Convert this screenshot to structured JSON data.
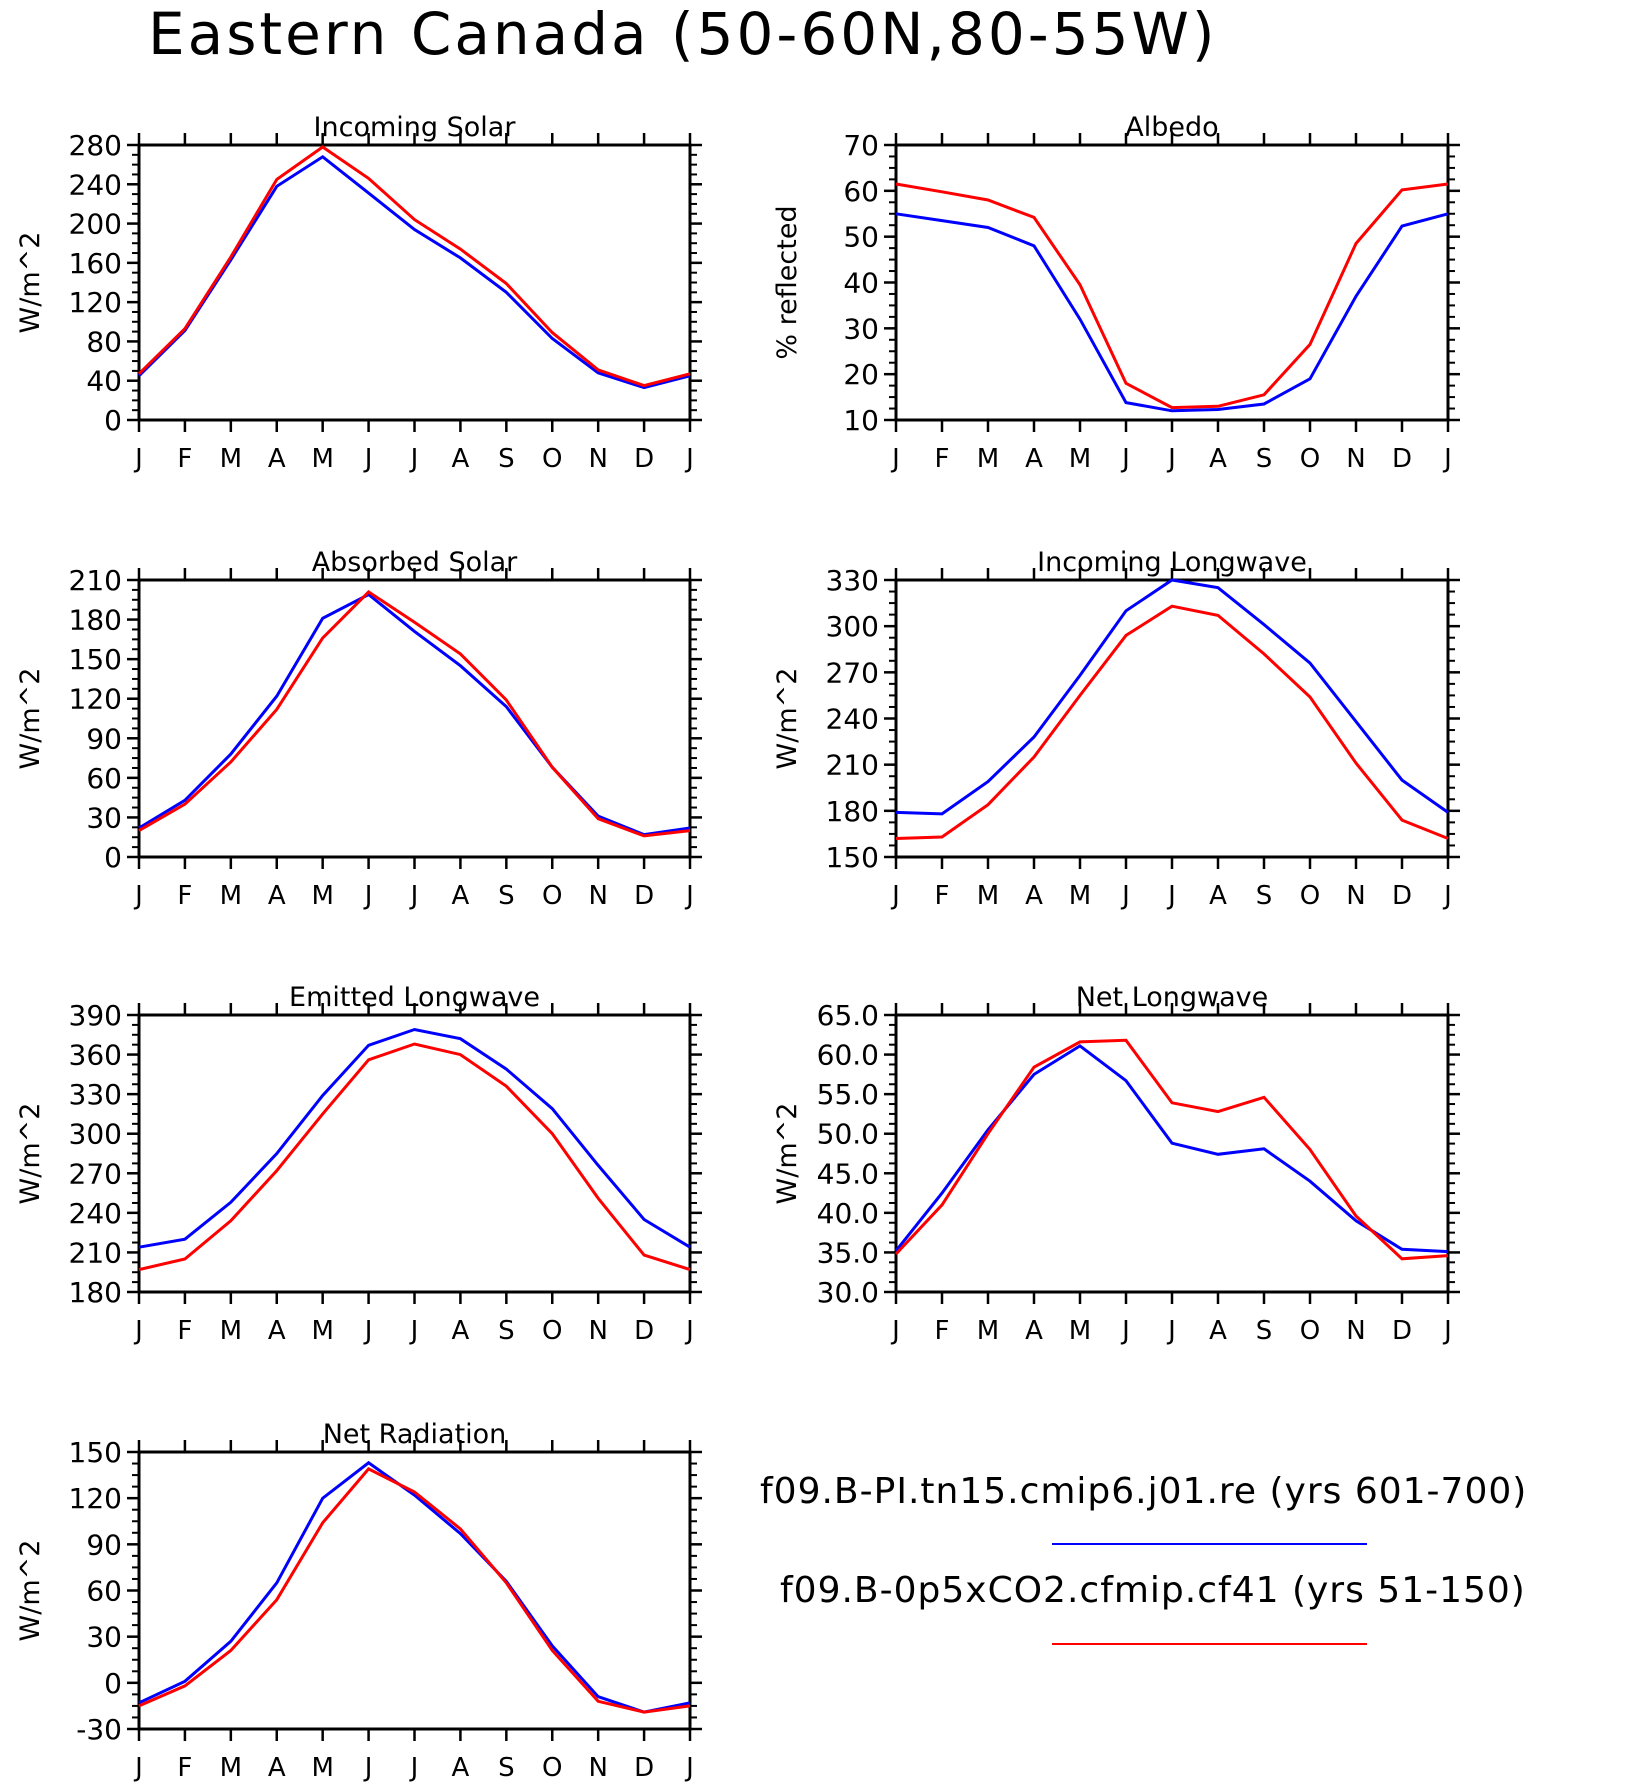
{
  "title": "Eastern Canada (50-60N,80-55W)",
  "month_labels": [
    "J",
    "F",
    "M",
    "A",
    "M",
    "J",
    "J",
    "A",
    "S",
    "O",
    "N",
    "D",
    "J"
  ],
  "legend": [
    {
      "label": "f09.B-PI.tn15.cmip6.j01.re (yrs 601-700)",
      "color": "#0000ff"
    },
    {
      "label": "f09.B-0p5xCO2.cfmip.cf41 (yrs 51-150)",
      "color": "#ff0000"
    }
  ],
  "chart_data": [
    {
      "type": "line",
      "title": "Incoming Solar",
      "ylabel": "W/m^2",
      "ylim": [
        0,
        280
      ],
      "yticks": [
        "0",
        "40",
        "80",
        "120",
        "160",
        "200",
        "240",
        "280"
      ],
      "categories": [
        "J",
        "F",
        "M",
        "A",
        "M",
        "J",
        "J",
        "A",
        "S",
        "O",
        "N",
        "D",
        "J"
      ],
      "series": [
        {
          "color": "#0000ff",
          "values": [
            45,
            91,
            163,
            238,
            268,
            231,
            194,
            165,
            130,
            83,
            48,
            33,
            45
          ]
        },
        {
          "color": "#ff0000",
          "values": [
            47,
            93,
            166,
            245,
            278,
            246,
            204,
            174,
            139,
            89,
            51,
            35,
            47
          ]
        }
      ]
    },
    {
      "type": "line",
      "title": "Albedo",
      "ylabel": "% reflected",
      "ylim": [
        10,
        70
      ],
      "yticks": [
        "10",
        "20",
        "30",
        "40",
        "50",
        "60",
        "70"
      ],
      "categories": [
        "J",
        "F",
        "M",
        "A",
        "M",
        "J",
        "J",
        "A",
        "S",
        "O",
        "N",
        "D",
        "J"
      ],
      "series": [
        {
          "color": "#0000ff",
          "values": [
            55,
            53.5,
            52,
            48,
            32,
            13.8,
            12,
            12.3,
            13.5,
            19,
            37,
            52.3,
            55
          ]
        },
        {
          "color": "#ff0000",
          "values": [
            61.5,
            59.8,
            58,
            54.2,
            39.5,
            18,
            12.7,
            13,
            15.5,
            26.5,
            48.5,
            60.2,
            61.5
          ]
        }
      ]
    },
    {
      "type": "line",
      "title": "Absorbed Solar",
      "ylabel": "W/m^2",
      "ylim": [
        0,
        210
      ],
      "yticks": [
        "0",
        "30",
        "60",
        "90",
        "120",
        "150",
        "180",
        "210"
      ],
      "categories": [
        "J",
        "F",
        "M",
        "A",
        "M",
        "J",
        "J",
        "A",
        "S",
        "O",
        "N",
        "D",
        "J"
      ],
      "series": [
        {
          "color": "#0000ff",
          "values": [
            22,
            43,
            78,
            122,
            181,
            199,
            171,
            145,
            114,
            68,
            31,
            17,
            22
          ]
        },
        {
          "color": "#ff0000",
          "values": [
            20,
            40,
            72,
            112,
            166,
            201,
            178,
            154,
            119,
            68,
            29,
            16,
            20
          ]
        }
      ]
    },
    {
      "type": "line",
      "title": "Incoming Longwave",
      "ylabel": "W/m^2",
      "ylim": [
        150,
        330
      ],
      "yticks": [
        "150",
        "180",
        "210",
        "240",
        "270",
        "300",
        "330"
      ],
      "categories": [
        "J",
        "F",
        "M",
        "A",
        "M",
        "J",
        "J",
        "A",
        "S",
        "O",
        "N",
        "D",
        "J"
      ],
      "series": [
        {
          "color": "#0000ff",
          "values": [
            179,
            178,
            199,
            228,
            268,
            310,
            330,
            325,
            301,
            276,
            238,
            200,
            179
          ]
        },
        {
          "color": "#ff0000",
          "values": [
            162,
            163,
            184,
            215,
            255,
            294,
            313,
            307,
            282,
            254,
            211,
            174,
            162
          ]
        }
      ]
    },
    {
      "type": "line",
      "title": "Emitted Longwave",
      "ylabel": "W/m^2",
      "ylim": [
        180,
        390
      ],
      "yticks": [
        "180",
        "210",
        "240",
        "270",
        "300",
        "330",
        "360",
        "390"
      ],
      "categories": [
        "J",
        "F",
        "M",
        "A",
        "M",
        "J",
        "J",
        "A",
        "S",
        "O",
        "N",
        "D",
        "J"
      ],
      "series": [
        {
          "color": "#0000ff",
          "values": [
            214,
            220,
            248,
            285,
            329,
            367,
            379,
            372,
            349,
            319,
            276,
            235,
            214
          ]
        },
        {
          "color": "#ff0000",
          "values": [
            197,
            205,
            234,
            272,
            315,
            356,
            368,
            360,
            336,
            300,
            251,
            208,
            197
          ]
        }
      ]
    },
    {
      "type": "line",
      "title": "Net Longwave",
      "ylabel": "W/m^2",
      "ylim": [
        30,
        65
      ],
      "yticks": [
        "30.0",
        "35.0",
        "40.0",
        "45.0",
        "50.0",
        "55.0",
        "60.0",
        "65.0"
      ],
      "categories": [
        "J",
        "F",
        "M",
        "A",
        "M",
        "J",
        "J",
        "A",
        "S",
        "O",
        "N",
        "D",
        "J"
      ],
      "series": [
        {
          "color": "#0000ff",
          "values": [
            35.2,
            42.5,
            50.5,
            57.5,
            61.1,
            56.7,
            48.8,
            47.4,
            48.1,
            44,
            39,
            35.4,
            35.1
          ]
        },
        {
          "color": "#ff0000",
          "values": [
            34.8,
            41,
            50,
            58.4,
            61.6,
            61.8,
            53.9,
            52.8,
            54.6,
            48,
            39.6,
            34.2,
            34.6
          ]
        }
      ]
    },
    {
      "type": "line",
      "title": "Net Radiation",
      "ylabel": "W/m^2",
      "ylim": [
        -30,
        150
      ],
      "yticks": [
        "-30",
        "0",
        "30",
        "60",
        "90",
        "120",
        "150"
      ],
      "categories": [
        "J",
        "F",
        "M",
        "A",
        "M",
        "J",
        "J",
        "A",
        "S",
        "O",
        "N",
        "D",
        "J"
      ],
      "series": [
        {
          "color": "#0000ff",
          "values": [
            -13,
            1,
            27,
            65,
            120,
            143,
            122,
            97,
            66,
            24,
            -9,
            -19,
            -13
          ]
        },
        {
          "color": "#ff0000",
          "values": [
            -15,
            -2,
            21,
            54,
            104,
            139,
            124,
            100,
            65,
            21,
            -12,
            -19,
            -15
          ]
        }
      ]
    }
  ]
}
